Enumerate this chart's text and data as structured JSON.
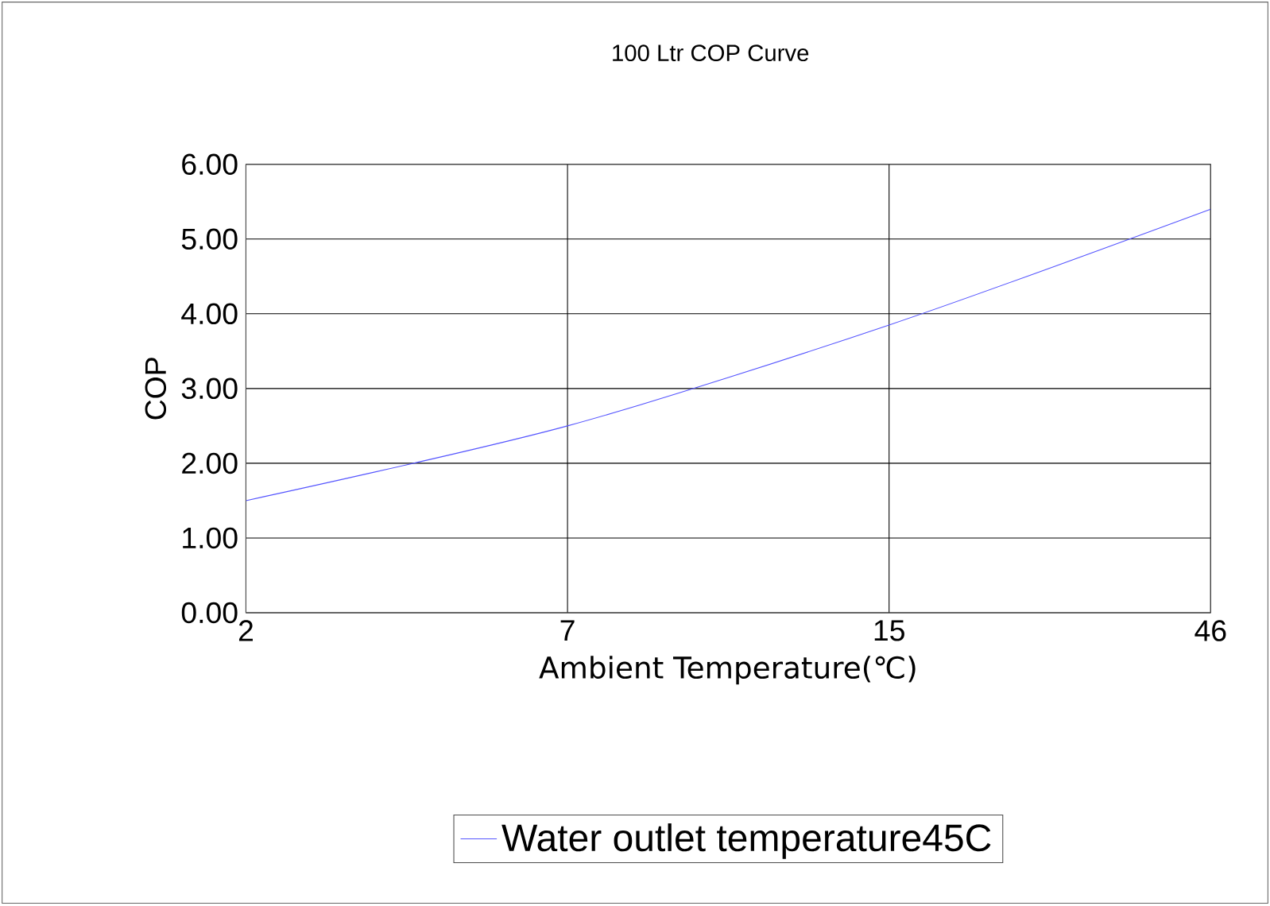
{
  "chart_data": {
    "type": "line",
    "title": "100 Ltr COP Curve",
    "xlabel": "Ambient Temperature(℃)",
    "ylabel": "COP",
    "categories": [
      "2",
      "7",
      "15",
      "46"
    ],
    "series": [
      {
        "name": "Water outlet temperature45C",
        "color": "#5555ff",
        "values": [
          1.5,
          2.5,
          3.85,
          5.4
        ]
      }
    ],
    "ylim": [
      0,
      6
    ],
    "yticks": [
      {
        "value": 0,
        "label": "0.00"
      },
      {
        "value": 1,
        "label": "1.00"
      },
      {
        "value": 2,
        "label": "2.00"
      },
      {
        "value": 3,
        "label": "3.00"
      },
      {
        "value": 4,
        "label": "4.00"
      },
      {
        "value": 5,
        "label": "5.00"
      },
      {
        "value": 6,
        "label": "6.00"
      }
    ],
    "grid": true,
    "legend": "bottom",
    "marker": "none",
    "line_style": "solid"
  }
}
